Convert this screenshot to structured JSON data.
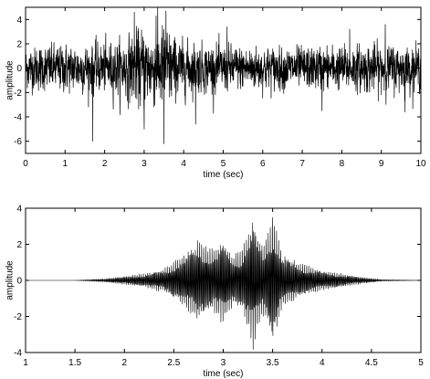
{
  "chart_data": [
    {
      "type": "line",
      "title": "",
      "xlabel": "time (sec)",
      "ylabel": "amplitude",
      "xlim": [
        0,
        10
      ],
      "ylim": [
        -7,
        5
      ],
      "xticks": [
        0,
        1,
        2,
        3,
        4,
        5,
        6,
        7,
        8,
        9,
        10
      ],
      "xtick_labels": [
        "0",
        "1",
        "2",
        "3",
        "4",
        "5",
        "6",
        "7",
        "8",
        "9",
        "10"
      ],
      "yticks": [
        -6,
        -4,
        -2,
        0,
        2,
        4
      ],
      "ytick_labels": [
        "-6",
        "-4",
        "-2",
        "0",
        "2",
        "4"
      ],
      "grid": false,
      "series": [
        {
          "color": "#000000",
          "description_of_shape": "dense noise-like signal",
          "samples": 2200,
          "x_range": [
            0,
            10
          ],
          "envelope": {
            "x": [
              0,
              0.5,
              1,
              1.5,
              2,
              2.5,
              2.8,
              3,
              3.2,
              3.5,
              3.8,
              4,
              4.5,
              5,
              6,
              7,
              8,
              9,
              10
            ],
            "amp": [
              1.0,
              1.1,
              1.15,
              1.15,
              1.2,
              1.4,
              1.8,
              2.0,
              1.7,
              2.2,
              1.5,
              1.3,
              1.15,
              1.1,
              1.05,
              1.0,
              1.05,
              1.15,
              1.05
            ]
          },
          "peaks": [
            {
              "x": 1.7,
              "y": -6.0
            },
            {
              "x": 2.75,
              "y": 4.6
            },
            {
              "x": 3.0,
              "y": -5.0
            },
            {
              "x": 3.3,
              "y": 4.3
            },
            {
              "x": 3.5,
              "y": -6.2
            },
            {
              "x": 3.55,
              "y": 4.7
            },
            {
              "x": 4.3,
              "y": -4.6
            },
            {
              "x": 5.1,
              "y": 3.4
            },
            {
              "x": 7.5,
              "y": -3.5
            },
            {
              "x": 8.2,
              "y": 3.2
            },
            {
              "x": 9.1,
              "y": 3.6
            },
            {
              "x": 9.6,
              "y": -3.6
            }
          ]
        }
      ]
    },
    {
      "type": "line",
      "title": "",
      "xlabel": "time (sec)",
      "ylabel": "amplitude",
      "xlim": [
        1,
        5
      ],
      "ylim": [
        -4,
        4
      ],
      "xticks": [
        1,
        1.5,
        2,
        2.5,
        3,
        3.5,
        4,
        4.5,
        5
      ],
      "xtick_labels": [
        "1",
        "1.5",
        "2",
        "2.5",
        "3",
        "3.5",
        "4",
        "4.5",
        "5"
      ],
      "yticks": [
        -4,
        -2,
        0,
        2,
        4
      ],
      "ytick_labels": [
        "-4",
        "-2",
        "0",
        "2",
        "4"
      ],
      "grid": false,
      "series": [
        {
          "color": "#000000",
          "description_of_shape": "modulated oscillation bursts",
          "samples": 2600,
          "x_range": [
            1,
            5
          ],
          "envelope": {
            "x": [
              1,
              1.5,
              1.8,
              2.0,
              2.2,
              2.4,
              2.5,
              2.6,
              2.75,
              2.9,
              3.0,
              3.1,
              3.2,
              3.3,
              3.4,
              3.5,
              3.6,
              3.75,
              3.9,
              4.0,
              4.2,
              4.4,
              4.6,
              5
            ],
            "amp": [
              0.0,
              0.0,
              0.1,
              0.25,
              0.4,
              0.7,
              1.1,
              1.6,
              2.5,
              1.8,
              2.6,
              1.5,
              1.9,
              3.9,
              2.0,
              3.9,
              1.6,
              1.1,
              0.8,
              0.6,
              0.4,
              0.2,
              0.05,
              0.0
            ]
          }
        }
      ]
    }
  ]
}
